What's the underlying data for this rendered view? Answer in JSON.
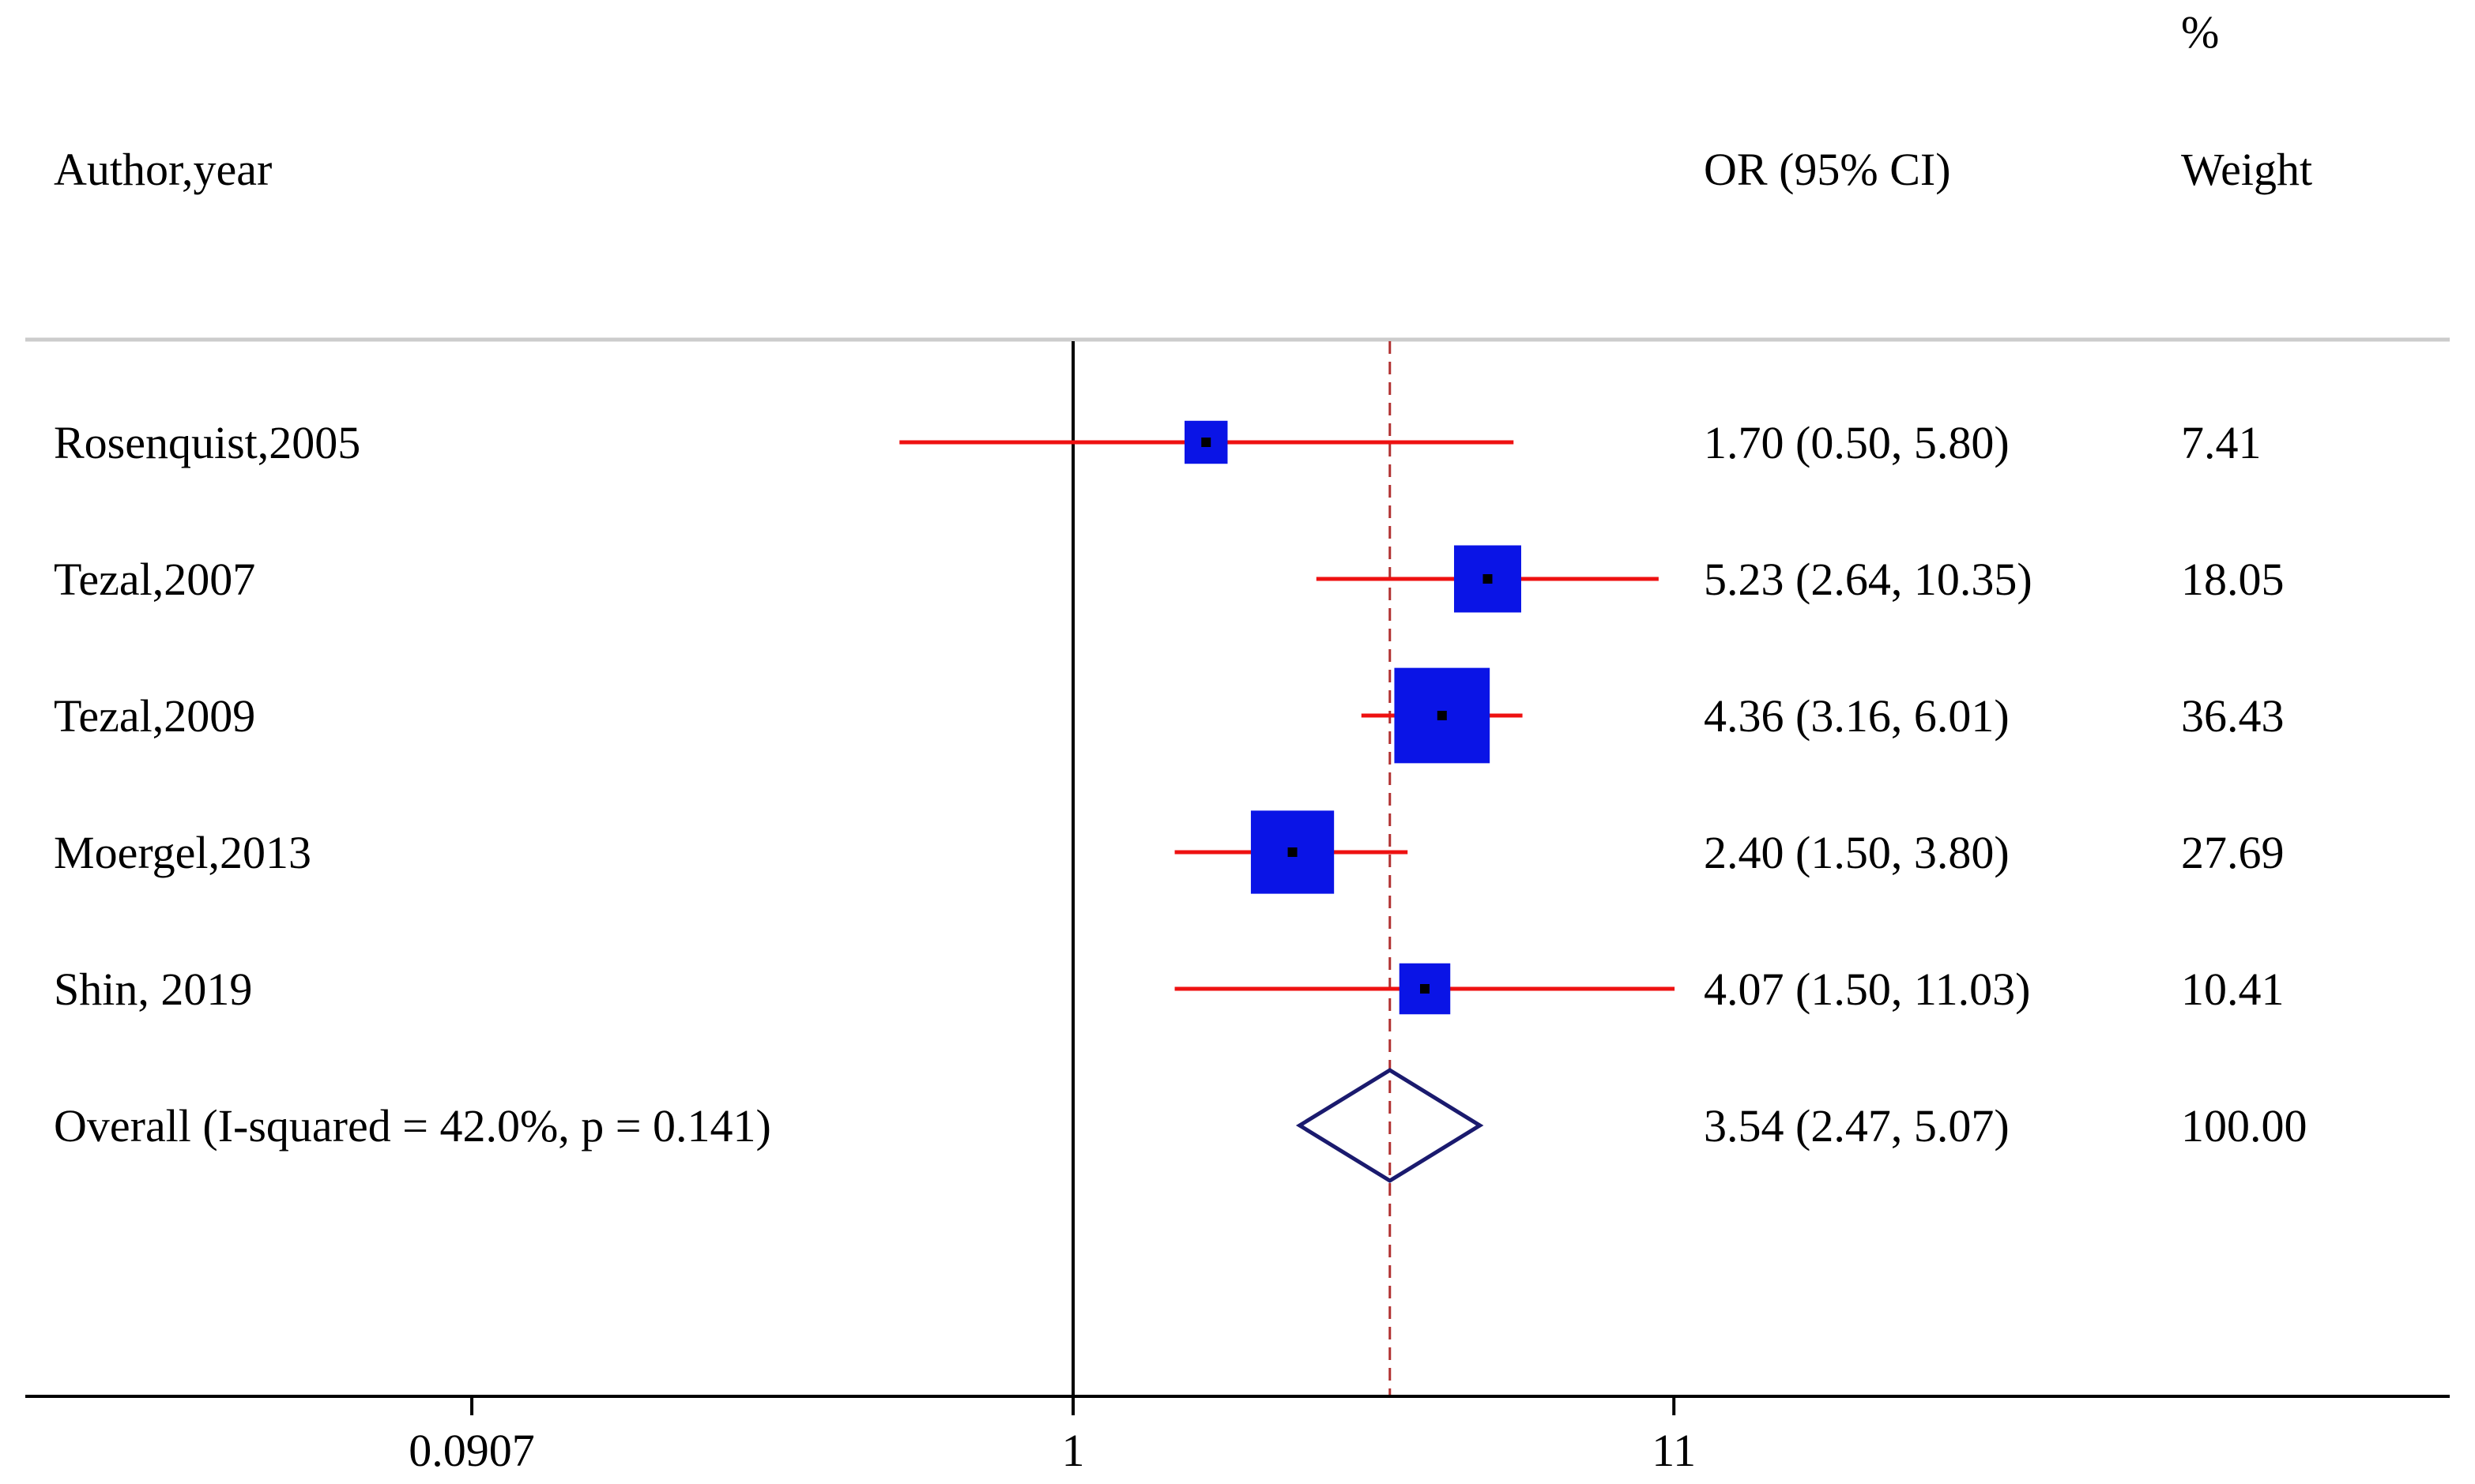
{
  "chart_data": {
    "type": "forest",
    "headers": {
      "study": "Author,year",
      "estimate": "OR (95% CI)",
      "weight_top": "%",
      "weight": "Weight"
    },
    "studies": [
      {
        "label": "Rosenquist,2005",
        "or": 1.7,
        "lo": 0.5,
        "hi": 5.8,
        "ci_text": "1.70 (0.50, 5.80)",
        "weight": 7.41,
        "weight_text": "7.41"
      },
      {
        "label": "Tezal,2007",
        "or": 5.23,
        "lo": 2.64,
        "hi": 10.35,
        "ci_text": "5.23 (2.64, 10.35)",
        "weight": 18.05,
        "weight_text": "18.05"
      },
      {
        "label": "Tezal,2009",
        "or": 4.36,
        "lo": 3.16,
        "hi": 6.01,
        "ci_text": "4.36 (3.16, 6.01)",
        "weight": 36.43,
        "weight_text": "36.43"
      },
      {
        "label": "Moergel,2013",
        "or": 2.4,
        "lo": 1.5,
        "hi": 3.8,
        "ci_text": "2.40 (1.50, 3.80)",
        "weight": 27.69,
        "weight_text": "27.69"
      },
      {
        "label": "Shin, 2019",
        "or": 4.07,
        "lo": 1.5,
        "hi": 11.03,
        "ci_text": "4.07 (1.50, 11.03)",
        "weight": 10.41,
        "weight_text": "10.41"
      }
    ],
    "overall": {
      "label": "Overall  (I-squared = 42.0%, p = 0.141)",
      "or": 3.54,
      "lo": 2.47,
      "hi": 5.07,
      "ci_text": "3.54 (2.47, 5.07)",
      "weight_text": "100.00"
    },
    "x_axis": {
      "scale": "log",
      "ticks": [
        0.0907,
        1,
        11
      ],
      "tick_labels": [
        "0.0907",
        "1",
        "11"
      ],
      "null_line": 1
    },
    "colors": {
      "ci_line": "#ee1111",
      "box": "#0a14e6",
      "point": "#000000",
      "diamond": "#1a1a6e",
      "overall_line": "#b03030",
      "separator": "#cccccc",
      "axis": "#000000"
    }
  }
}
